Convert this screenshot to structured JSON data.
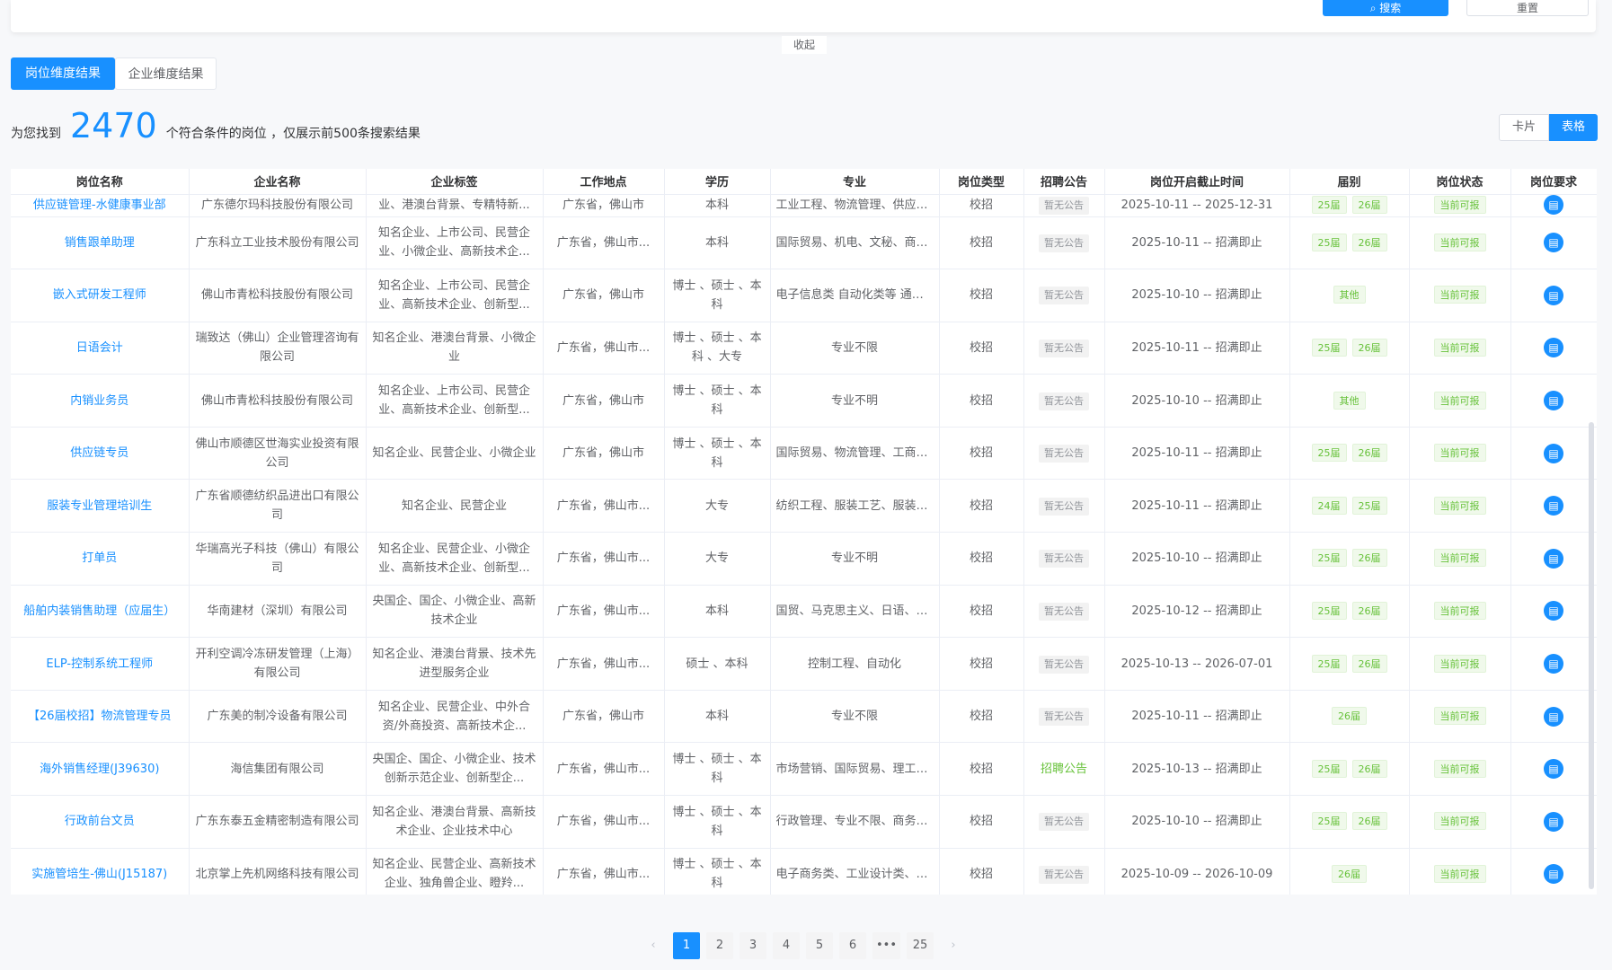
{
  "top": {
    "search": "搜索",
    "reset": "重置",
    "collapse": "收起"
  },
  "tabs": [
    "岗位维度结果",
    "企业维度结果"
  ],
  "summary": {
    "prefix": "为您找到",
    "count": "2470",
    "suffix": "个符合条件的岗位 ，仅展示前500条搜索结果"
  },
  "view": {
    "card": "卡片",
    "table": "表格"
  },
  "columns": [
    "岗位名称",
    "企业名称",
    "企业标签",
    "工作地点",
    "学历",
    "专业",
    "岗位类型",
    "招聘公告",
    "岗位开启截止时间",
    "届别",
    "岗位状态",
    "岗位要求"
  ],
  "rows": [
    {
      "name": "供应链管理-水健康事业部",
      "company": "广东德尔玛科技股份有限公司",
      "tags": "业、港澳台背景、专精特新...",
      "location": "广东省，佛山市",
      "edu": "本科",
      "major": "工业工程、物流管理、供应链管理",
      "type": "校招",
      "notice": "暂无公告",
      "period": "2025-10-11 -- 2025-12-31",
      "cohort": [
        "25届",
        "26届"
      ],
      "status": "当前可报"
    },
    {
      "name": "销售跟单助理",
      "company": "广东科立工业技术股份有限公司",
      "tags": "知名企业、上市公司、民营企业、小微企业、高新技术企...",
      "location": "广东省，佛山市...",
      "edu": "本科",
      "major": "国际贸易、机电、文秘、商务英语...",
      "type": "校招",
      "notice": "暂无公告",
      "period": "2025-10-11 -- 招满即止",
      "cohort": [
        "25届",
        "26届"
      ],
      "status": "当前可报"
    },
    {
      "name": "嵌入式研发工程师",
      "company": "佛山市青松科技股份有限公司",
      "tags": "知名企业、上市公司、民营企业、高新技术企业、创新型...",
      "location": "广东省，佛山市",
      "edu": "博士 、硕士 、本科",
      "major": "电子信息类 自动化类等 通信工程 ...",
      "type": "校招",
      "notice": "暂无公告",
      "period": "2025-10-10 -- 招满即止",
      "cohort": [
        "其他"
      ],
      "status": "当前可报"
    },
    {
      "name": "日语会计",
      "company": "瑞致达（佛山）企业管理咨询有限公司",
      "tags": "知名企业、港澳台背景、小微企业",
      "location": "广东省，佛山市...",
      "edu": "博士 、硕士 、本科 、大专",
      "major": "专业不限",
      "type": "校招",
      "notice": "暂无公告",
      "period": "2025-10-11 -- 招满即止",
      "cohort": [
        "25届",
        "26届"
      ],
      "status": "当前可报"
    },
    {
      "name": "内销业务员",
      "company": "佛山市青松科技股份有限公司",
      "tags": "知名企业、上市公司、民营企业、高新技术企业、创新型...",
      "location": "广东省，佛山市",
      "edu": "博士 、硕士 、本科",
      "major": "专业不明",
      "type": "校招",
      "notice": "暂无公告",
      "period": "2025-10-10 -- 招满即止",
      "cohort": [
        "其他"
      ],
      "status": "当前可报"
    },
    {
      "name": "供应链专员",
      "company": "佛山市顺德区世海实业投资有限公司",
      "tags": "知名企业、民营企业、小微企业",
      "location": "广东省，佛山市",
      "edu": "博士 、硕士 、本科",
      "major": "国际贸易、物流管理、工商管理、...",
      "type": "校招",
      "notice": "暂无公告",
      "period": "2025-10-11 -- 招满即止",
      "cohort": [
        "25届",
        "26届"
      ],
      "status": "当前可报"
    },
    {
      "name": "服装专业管理培训生",
      "company": "广东省顺德纺织品进出口有限公司",
      "tags": "知名企业、民营企业",
      "location": "广东省，佛山市...",
      "edu": "大专",
      "major": "纺织工程、服装工艺、服装工程",
      "type": "校招",
      "notice": "暂无公告",
      "period": "2025-10-11 -- 招满即止",
      "cohort": [
        "24届",
        "25届"
      ],
      "status": "当前可报"
    },
    {
      "name": "打单员",
      "company": "华瑞高光子科技（佛山）有限公司",
      "tags": "知名企业、民营企业、小微企业、高新技术企业、创新型...",
      "location": "广东省，佛山市...",
      "edu": "大专",
      "major": "专业不明",
      "type": "校招",
      "notice": "暂无公告",
      "period": "2025-10-10 -- 招满即止",
      "cohort": [
        "25届",
        "26届"
      ],
      "status": "当前可报"
    },
    {
      "name": "船舶内装销售助理（应届生）",
      "company": "华南建材（深圳）有限公司",
      "tags": "央国企、国企、小微企业、高新技术企业",
      "location": "广东省，佛山市...",
      "edu": "本科",
      "major": "国贸、马克思主义、日语、韩语、...",
      "type": "校招",
      "notice": "暂无公告",
      "period": "2025-10-12 -- 招满即止",
      "cohort": [
        "25届",
        "26届"
      ],
      "status": "当前可报"
    },
    {
      "name": "ELP-控制系统工程师",
      "company": "开利空调冷冻研发管理（上海）有限公司",
      "tags": "知名企业、港澳台背景、技术先进型服务企业",
      "location": "广东省，佛山市...",
      "edu": "硕士 、本科",
      "major": "控制工程、自动化",
      "type": "校招",
      "notice": "暂无公告",
      "period": "2025-10-13 -- 2026-07-01",
      "cohort": [
        "25届",
        "26届"
      ],
      "status": "当前可报"
    },
    {
      "name": "【26届校招】物流管理专员",
      "company": "广东美的制冷设备有限公司",
      "tags": "知名企业、民营企业、中外合资/外商投资、高新技术企...",
      "location": "广东省，佛山市",
      "edu": "本科",
      "major": "专业不限",
      "type": "校招",
      "notice": "暂无公告",
      "period": "2025-10-11 -- 招满即止",
      "cohort": [
        "26届"
      ],
      "status": "当前可报"
    },
    {
      "name": "海外销售经理(J39630)",
      "company": "海信集团有限公司",
      "tags": "央国企、国企、小微企业、技术创新示范企业、创新型企...",
      "location": "广东省，佛山市...",
      "edu": "博士 、硕士 、本科",
      "major": "市场营销、国际贸易、理工类、外...",
      "type": "校招",
      "notice": "招聘公告",
      "period": "2025-10-13 -- 招满即止",
      "cohort": [
        "25届",
        "26届"
      ],
      "status": "当前可报"
    },
    {
      "name": "行政前台文员",
      "company": "广东东泰五金精密制造有限公司",
      "tags": "知名企业、港澳台背景、高新技术企业、企业技术中心",
      "location": "广东省，佛山市...",
      "edu": "博士 、硕士 、本科",
      "major": "行政管理、专业不限、商务英语",
      "type": "校招",
      "notice": "暂无公告",
      "period": "2025-10-10 -- 招满即止",
      "cohort": [
        "25届",
        "26届"
      ],
      "status": "当前可报"
    },
    {
      "name": "实施管培生-佛山(J15187)",
      "company": "北京掌上先机网络科技有限公司",
      "tags": "知名企业、民营企业、高新技术企业、独角兽企业、瞪羚...",
      "location": "广东省，佛山市...",
      "edu": "博士 、硕士 、本科",
      "major": "电子商务类、工业设计类、计算机...",
      "type": "校招",
      "notice": "暂无公告",
      "period": "2025-10-09 -- 2026-10-09",
      "cohort": [
        "26届"
      ],
      "status": "当前可报"
    }
  ],
  "pager": {
    "pages": [
      "1",
      "2",
      "3",
      "4",
      "5",
      "6",
      "•••",
      "25"
    ],
    "current": "1",
    "prev": "‹",
    "next": "›"
  }
}
